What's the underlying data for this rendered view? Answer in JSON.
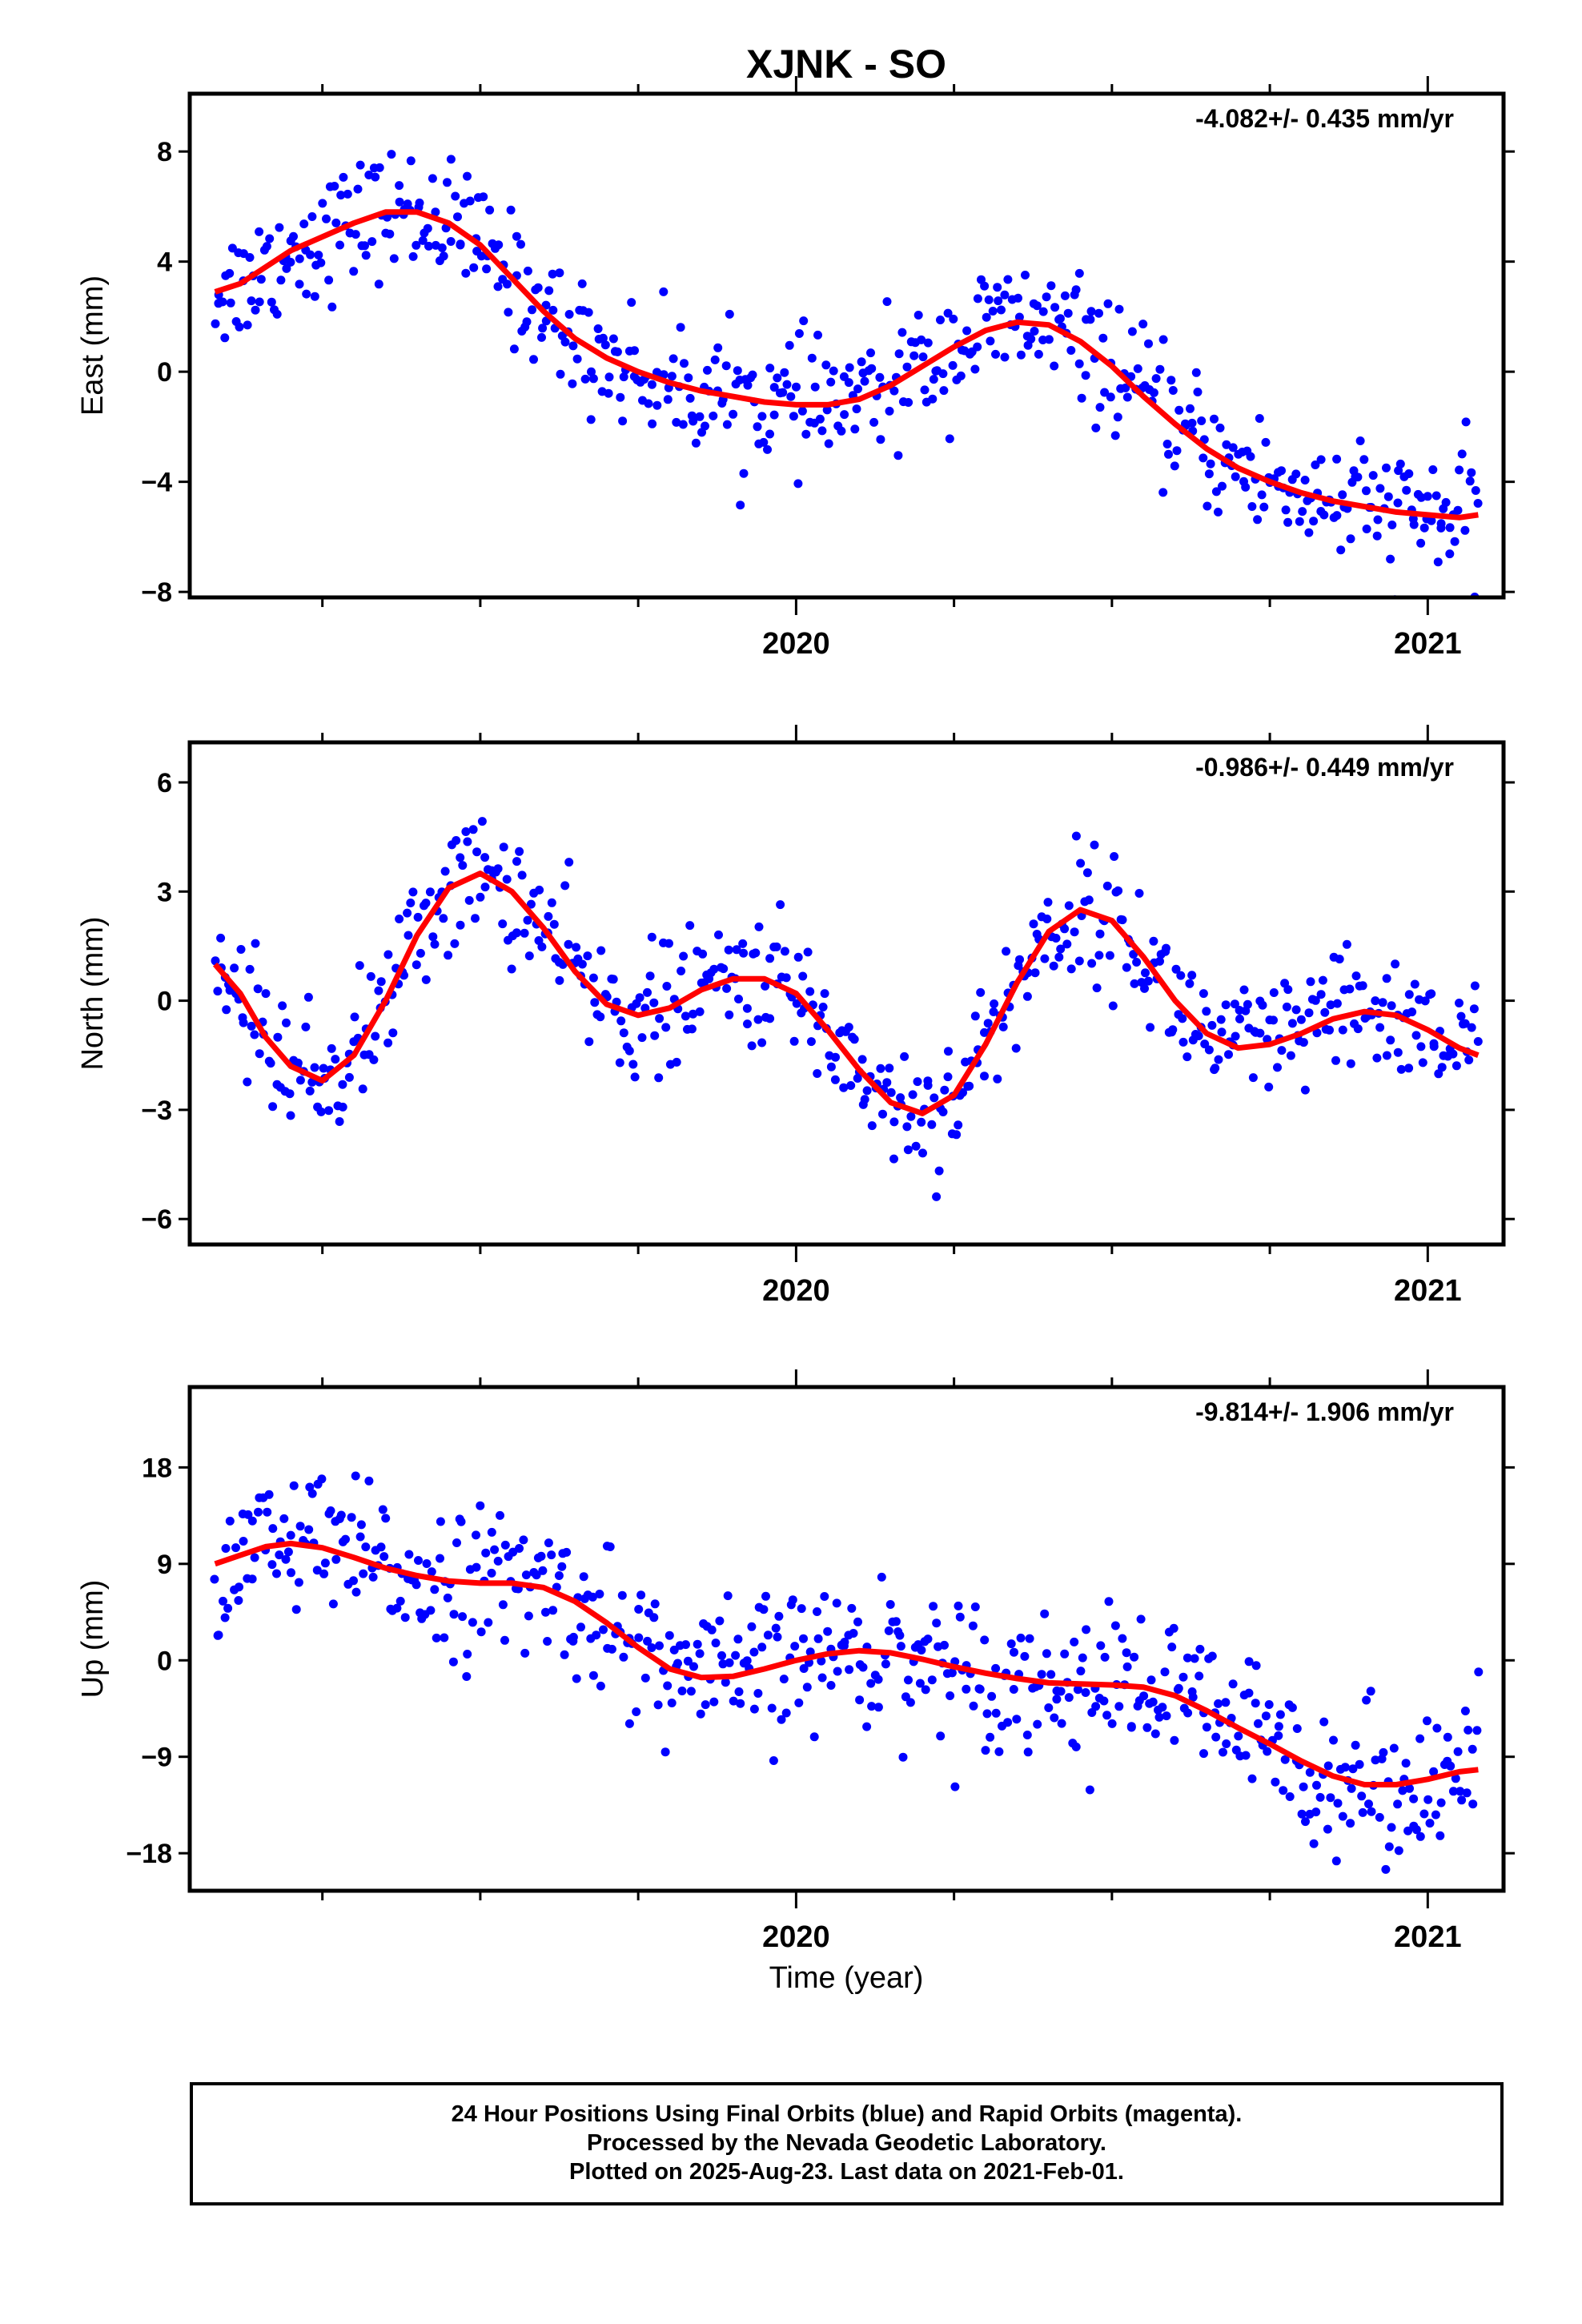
{
  "title": "XJNK - SO",
  "colors": {
    "final_orbit": "#0000ff",
    "fit": "#ff0000",
    "axis": "#000000"
  },
  "xlabel": "Time (year)",
  "chart_data": [
    {
      "type": "scatter",
      "ylabel": "East (mm)",
      "rate": "-4.082+/- 0.435 mm/yr",
      "xlim": [
        2019.04,
        2021.12
      ],
      "ylim": [
        -8.2,
        10.1
      ],
      "yticks": [
        -8,
        -4,
        0,
        4,
        8
      ],
      "xticks": [
        2020,
        2021
      ],
      "x_minor": [
        2019.25,
        2019.5,
        2019.75,
        2020.25,
        2020.5,
        2020.75
      ],
      "series": [
        {
          "type": "scatter",
          "x": [
            2019.08,
            2019.12,
            2019.16,
            2019.2,
            2019.25,
            2019.3,
            2019.35,
            2019.4,
            2019.45,
            2019.5,
            2019.55,
            2019.6,
            2019.65,
            2019.7,
            2019.75,
            2019.8,
            2019.85,
            2019.9,
            2019.95,
            2020.0,
            2020.05,
            2020.1,
            2020.15,
            2020.2,
            2020.25,
            2020.3,
            2020.35,
            2020.4,
            2020.45,
            2020.5,
            2020.55,
            2020.6,
            2020.65,
            2020.7,
            2020.75,
            2020.8,
            2020.85,
            2020.9,
            2020.95,
            2021.0,
            2021.05,
            2021.08
          ],
          "y": [
            2.9,
            3.2,
            3.8,
            4.4,
            4.9,
            5.4,
            5.8,
            5.8,
            5.4,
            4.6,
            3.4,
            2.2,
            1.2,
            0.5,
            0.0,
            -0.4,
            -0.7,
            -0.9,
            -1.1,
            -1.2,
            -1.2,
            -1.0,
            -0.5,
            0.2,
            0.9,
            1.5,
            1.8,
            1.7,
            1.1,
            0.2,
            -0.9,
            -1.9,
            -2.8,
            -3.5,
            -4.0,
            -4.4,
            -4.7,
            -4.9,
            -5.1,
            -5.2,
            -5.3,
            -5.2
          ]
        },
        {
          "type": "line",
          "x": [
            2019.08,
            2019.12,
            2019.16,
            2019.2,
            2019.25,
            2019.3,
            2019.35,
            2019.4,
            2019.45,
            2019.5,
            2019.55,
            2019.6,
            2019.65,
            2019.7,
            2019.75,
            2019.8,
            2019.85,
            2019.9,
            2019.95,
            2020.0,
            2020.05,
            2020.1,
            2020.15,
            2020.2,
            2020.25,
            2020.3,
            2020.35,
            2020.4,
            2020.45,
            2020.5,
            2020.55,
            2020.6,
            2020.65,
            2020.7,
            2020.75,
            2020.8,
            2020.85,
            2020.9,
            2020.95,
            2021.0,
            2021.05,
            2021.08
          ],
          "y": [
            2.9,
            3.2,
            3.8,
            4.4,
            4.9,
            5.4,
            5.8,
            5.8,
            5.4,
            4.6,
            3.4,
            2.2,
            1.2,
            0.5,
            0.0,
            -0.4,
            -0.7,
            -0.9,
            -1.1,
            -1.2,
            -1.2,
            -1.0,
            -0.5,
            0.2,
            0.9,
            1.5,
            1.8,
            1.7,
            1.1,
            0.2,
            -0.9,
            -1.9,
            -2.8,
            -3.5,
            -4.0,
            -4.4,
            -4.7,
            -4.9,
            -5.1,
            -5.2,
            -5.3,
            -5.2
          ]
        }
      ],
      "scatter_spread": 1.4
    },
    {
      "type": "scatter",
      "ylabel": "North (mm)",
      "rate": "-0.986+/- 0.449 mm/yr",
      "xlim": [
        2019.04,
        2021.12
      ],
      "ylim": [
        -6.7,
        7.1
      ],
      "yticks": [
        -6,
        -3,
        0,
        3,
        6
      ],
      "xticks": [
        2020,
        2021
      ],
      "x_minor": [
        2019.25,
        2019.5,
        2019.75,
        2020.25,
        2020.5,
        2020.75
      ],
      "series": [
        {
          "type": "scatter",
          "x": [
            2019.08,
            2019.12,
            2019.16,
            2019.2,
            2019.25,
            2019.3,
            2019.35,
            2019.4,
            2019.45,
            2019.5,
            2019.55,
            2019.6,
            2019.65,
            2019.7,
            2019.75,
            2019.8,
            2019.85,
            2019.9,
            2019.95,
            2020.0,
            2020.05,
            2020.1,
            2020.15,
            2020.2,
            2020.25,
            2020.3,
            2020.35,
            2020.4,
            2020.45,
            2020.5,
            2020.55,
            2020.6,
            2020.65,
            2020.7,
            2020.75,
            2020.8,
            2020.85,
            2020.9,
            2020.95,
            2021.0,
            2021.05,
            2021.08
          ],
          "y": [
            1.0,
            0.2,
            -1.0,
            -1.8,
            -2.2,
            -1.5,
            0.0,
            1.8,
            3.1,
            3.5,
            3.0,
            2.0,
            0.8,
            -0.1,
            -0.4,
            -0.2,
            0.3,
            0.6,
            0.6,
            0.2,
            -0.8,
            -1.9,
            -2.8,
            -3.1,
            -2.6,
            -1.2,
            0.5,
            1.9,
            2.5,
            2.2,
            1.2,
            0.0,
            -0.9,
            -1.3,
            -1.2,
            -0.9,
            -0.5,
            -0.3,
            -0.4,
            -0.8,
            -1.3,
            -1.5
          ]
        },
        {
          "type": "line",
          "x": [
            2019.08,
            2019.12,
            2019.16,
            2019.2,
            2019.25,
            2019.3,
            2019.35,
            2019.4,
            2019.45,
            2019.5,
            2019.55,
            2019.6,
            2019.65,
            2019.7,
            2019.75,
            2019.8,
            2019.85,
            2019.9,
            2019.95,
            2020.0,
            2020.05,
            2020.1,
            2020.15,
            2020.2,
            2020.25,
            2020.3,
            2020.35,
            2020.4,
            2020.45,
            2020.5,
            2020.55,
            2020.6,
            2020.65,
            2020.7,
            2020.75,
            2020.8,
            2020.85,
            2020.9,
            2020.95,
            2021.0,
            2021.05,
            2021.08
          ],
          "y": [
            1.0,
            0.2,
            -1.0,
            -1.8,
            -2.2,
            -1.5,
            0.0,
            1.8,
            3.1,
            3.5,
            3.0,
            2.0,
            0.8,
            -0.1,
            -0.4,
            -0.2,
            0.3,
            0.6,
            0.6,
            0.2,
            -0.8,
            -1.9,
            -2.8,
            -3.1,
            -2.6,
            -1.2,
            0.5,
            1.9,
            2.5,
            2.2,
            1.2,
            0.0,
            -0.9,
            -1.3,
            -1.2,
            -0.9,
            -0.5,
            -0.3,
            -0.4,
            -0.8,
            -1.3,
            -1.5
          ]
        }
      ],
      "scatter_spread": 1.1
    },
    {
      "type": "scatter",
      "ylabel": "Up (mm)",
      "rate": "-9.814+/- 1.906 mm/yr",
      "xlim": [
        2019.04,
        2021.12
      ],
      "ylim": [
        -21.5,
        25.5
      ],
      "yticks": [
        -18,
        -9,
        0,
        9,
        18
      ],
      "xticks": [
        2020,
        2021
      ],
      "x_minor": [
        2019.25,
        2019.5,
        2019.75,
        2020.25,
        2020.5,
        2020.75
      ],
      "series": [
        {
          "type": "scatter",
          "x": [
            2019.08,
            2019.12,
            2019.16,
            2019.2,
            2019.25,
            2019.3,
            2019.35,
            2019.4,
            2019.45,
            2019.5,
            2019.55,
            2019.6,
            2019.65,
            2019.7,
            2019.75,
            2019.8,
            2019.85,
            2019.9,
            2019.95,
            2020.0,
            2020.05,
            2020.1,
            2020.15,
            2020.2,
            2020.25,
            2020.3,
            2020.35,
            2020.4,
            2020.45,
            2020.5,
            2020.55,
            2020.6,
            2020.65,
            2020.7,
            2020.75,
            2020.8,
            2020.85,
            2020.9,
            2020.95,
            2021.0,
            2021.05,
            2021.08
          ],
          "y": [
            9.0,
            9.8,
            10.6,
            10.9,
            10.5,
            9.6,
            8.6,
            7.9,
            7.4,
            7.2,
            7.2,
            6.8,
            5.5,
            3.5,
            1.2,
            -0.8,
            -1.6,
            -1.5,
            -0.8,
            0.0,
            0.6,
            0.9,
            0.7,
            0.1,
            -0.6,
            -1.2,
            -1.7,
            -2.1,
            -2.2,
            -2.3,
            -2.5,
            -3.3,
            -4.7,
            -6.3,
            -7.8,
            -9.4,
            -10.8,
            -11.6,
            -11.6,
            -11.1,
            -10.4,
            -10.2
          ]
        },
        {
          "type": "line",
          "x": [
            2019.08,
            2019.12,
            2019.16,
            2019.2,
            2019.25,
            2019.3,
            2019.35,
            2019.4,
            2019.45,
            2019.5,
            2019.55,
            2019.6,
            2019.65,
            2019.7,
            2019.75,
            2019.8,
            2019.85,
            2019.9,
            2019.95,
            2020.0,
            2020.05,
            2020.1,
            2020.15,
            2020.2,
            2020.25,
            2020.3,
            2020.35,
            2020.4,
            2020.45,
            2020.5,
            2020.55,
            2020.6,
            2020.65,
            2020.7,
            2020.75,
            2020.8,
            2020.85,
            2020.9,
            2020.95,
            2021.0,
            2021.05,
            2021.08
          ],
          "y": [
            9.0,
            9.8,
            10.6,
            10.9,
            10.5,
            9.6,
            8.6,
            7.9,
            7.4,
            7.2,
            7.2,
            6.8,
            5.5,
            3.5,
            1.2,
            -0.8,
            -1.6,
            -1.5,
            -0.8,
            0.0,
            0.6,
            0.9,
            0.7,
            0.1,
            -0.6,
            -1.2,
            -1.7,
            -2.1,
            -2.2,
            -2.3,
            -2.5,
            -3.3,
            -4.7,
            -6.3,
            -7.8,
            -9.4,
            -10.8,
            -11.6,
            -11.6,
            -11.1,
            -10.4,
            -10.2
          ]
        }
      ],
      "scatter_spread": 4.2
    }
  ],
  "footer": {
    "line1": "24 Hour Positions Using Final Orbits (blue) and Rapid Orbits (magenta).",
    "line2": "Processed by the Nevada Geodetic Laboratory.",
    "line3": "Plotted on 2025-Aug-23. Last data on 2021-Feb-01."
  }
}
